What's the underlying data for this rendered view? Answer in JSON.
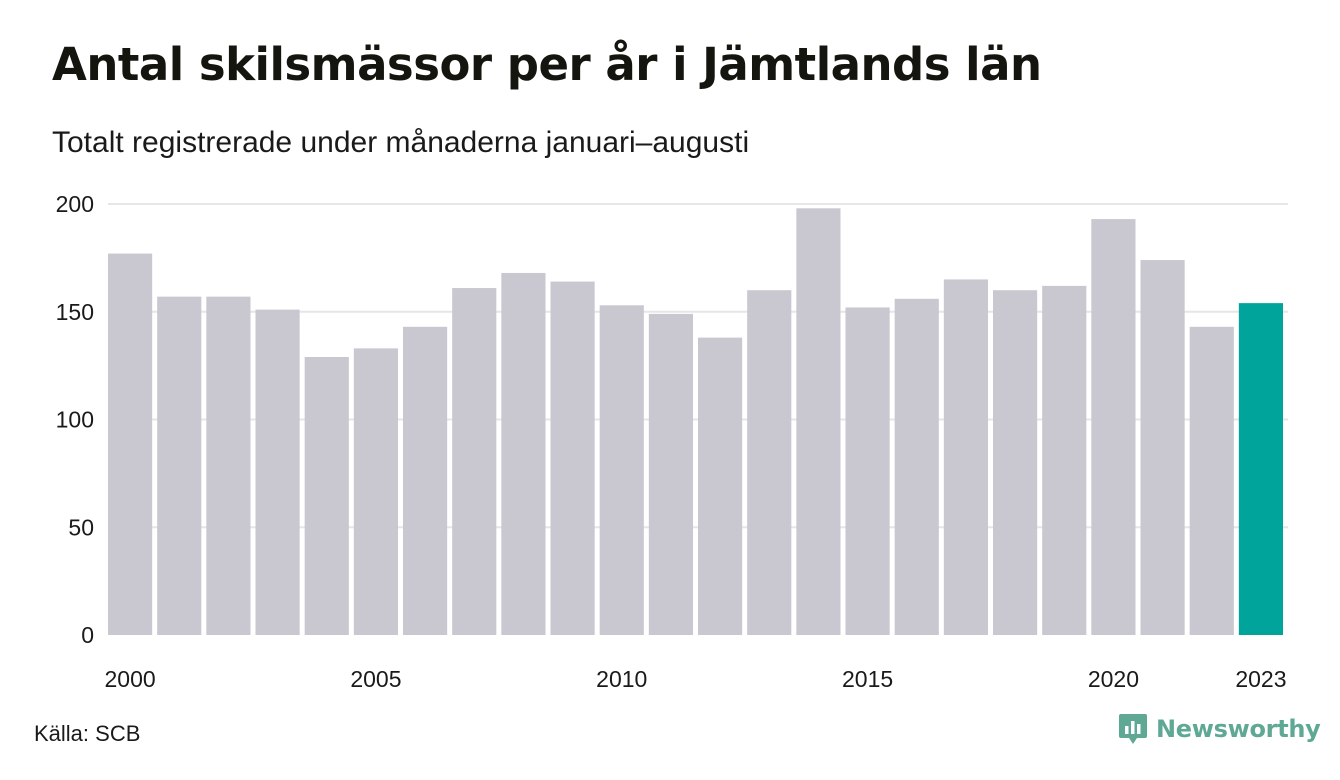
{
  "title": "Antal skilsmässor per år i Jämtlands län",
  "subtitle": "Totalt registrerade under månaderna januari–augusti",
  "source": "Källa: SCB",
  "brand": {
    "name": "Newsworthy",
    "icon": "newsworthy-logo-icon",
    "color": "#5fa894"
  },
  "colors": {
    "bar": "#c9c8d1",
    "highlight": "#00a49a",
    "grid": "#e6e6e6"
  },
  "chart_data": {
    "type": "bar",
    "categories": [
      "2000",
      "2001",
      "2002",
      "2003",
      "2004",
      "2005",
      "2006",
      "2007",
      "2008",
      "2009",
      "2010",
      "2011",
      "2012",
      "2013",
      "2014",
      "2015",
      "2016",
      "2017",
      "2018",
      "2019",
      "2020",
      "2021",
      "2022",
      "2023"
    ],
    "values": [
      177,
      157,
      157,
      151,
      129,
      133,
      143,
      161,
      168,
      164,
      153,
      149,
      138,
      160,
      198,
      152,
      156,
      165,
      160,
      162,
      193,
      174,
      143,
      154
    ],
    "highlight_category": "2023",
    "ylim": [
      0,
      200
    ],
    "yticks": [
      0,
      50,
      100,
      150,
      200
    ],
    "xtick_labels": [
      "2000",
      "2005",
      "2010",
      "2015",
      "2020",
      "2023"
    ],
    "grid": true
  }
}
